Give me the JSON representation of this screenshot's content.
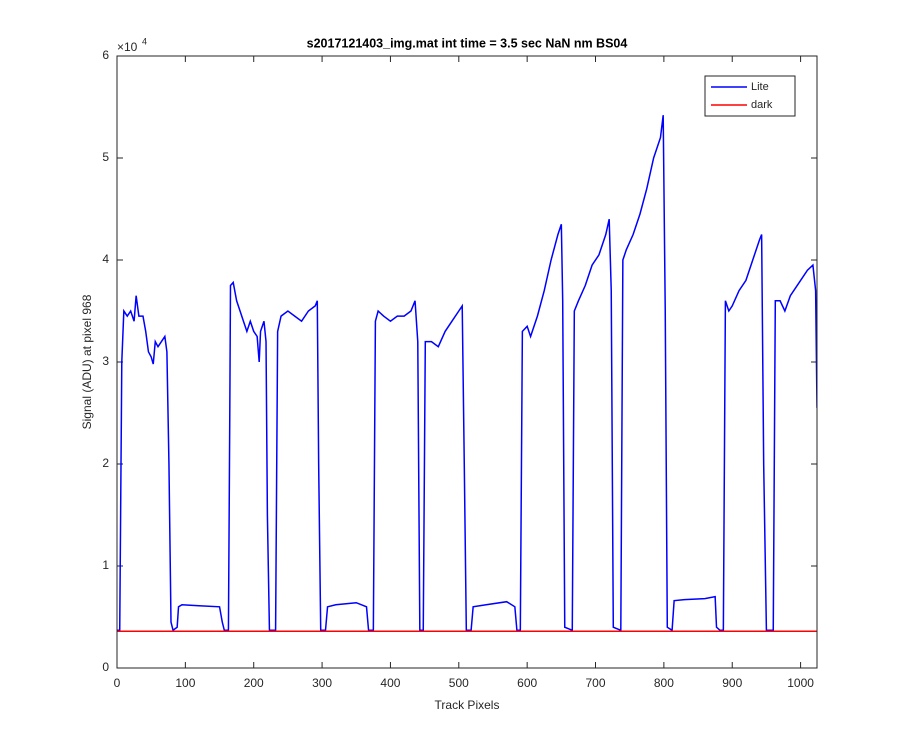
{
  "chart_data": {
    "type": "line",
    "title": "s2017121403_img.mat int time = 3.5 sec  NaN nm BS04",
    "x_label": "Track Pixels",
    "y_label": "Signal (ADU) at pixel 968",
    "y_multiplier": "×10",
    "y_multiplier_exponent": "4",
    "xlim": [
      0,
      1024
    ],
    "xticks": [
      0,
      100,
      200,
      300,
      400,
      500,
      600,
      700,
      800,
      900,
      1000
    ],
    "ylim": [
      0,
      6
    ],
    "yticks": [
      0,
      1,
      2,
      3,
      4,
      5,
      6
    ],
    "legend_position": "top-right",
    "series": [
      {
        "name": "Lite",
        "color": "#0000ff",
        "x": [
          0,
          4,
          7,
          10,
          15,
          20,
          25,
          28,
          32,
          38,
          42,
          46,
          50,
          53,
          56,
          60,
          65,
          70,
          73,
          76,
          79,
          82,
          88,
          90,
          95,
          120,
          150,
          154,
          157,
          163,
          165,
          166,
          170,
          175,
          180,
          185,
          190,
          195,
          200,
          205,
          208,
          210,
          215,
          218,
          220,
          223,
          232,
          235,
          240,
          250,
          260,
          270,
          280,
          290,
          293,
          295,
          298,
          305,
          308,
          320,
          350,
          365,
          368,
          375,
          378,
          382,
          390,
          400,
          410,
          420,
          430,
          436,
          440,
          443,
          448,
          451,
          460,
          470,
          480,
          490,
          500,
          505,
          508,
          511,
          518,
          521,
          540,
          570,
          582,
          585,
          590,
          593,
          600,
          605,
          615,
          625,
          635,
          645,
          650,
          652,
          655,
          666,
          669,
          675,
          685,
          695,
          705,
          715,
          720,
          723,
          726,
          737,
          740,
          745,
          755,
          765,
          775,
          785,
          795,
          799,
          802,
          805,
          812,
          815,
          830,
          860,
          875,
          877,
          882,
          887,
          890,
          895,
          900,
          910,
          920,
          930,
          940,
          943,
          946,
          950,
          960,
          963,
          970,
          977,
          985,
          1000,
          1010,
          1018,
          1022,
          1024
        ],
        "values": [
          0.37,
          0.37,
          3.0,
          3.5,
          3.45,
          3.5,
          3.4,
          3.65,
          3.45,
          3.45,
          3.3,
          3.1,
          3.05,
          2.98,
          3.2,
          3.15,
          3.2,
          3.25,
          3.1,
          2.0,
          0.45,
          0.37,
          0.4,
          0.6,
          0.62,
          0.61,
          0.6,
          0.45,
          0.37,
          0.37,
          2.5,
          3.75,
          3.78,
          3.6,
          3.5,
          3.4,
          3.3,
          3.4,
          3.3,
          3.25,
          3.0,
          3.3,
          3.4,
          3.2,
          1.5,
          0.37,
          0.37,
          3.3,
          3.45,
          3.5,
          3.45,
          3.4,
          3.5,
          3.55,
          3.6,
          2.0,
          0.37,
          0.37,
          0.6,
          0.62,
          0.64,
          0.6,
          0.37,
          0.37,
          3.4,
          3.5,
          3.45,
          3.4,
          3.45,
          3.45,
          3.5,
          3.6,
          3.2,
          0.37,
          0.37,
          3.2,
          3.2,
          3.15,
          3.3,
          3.4,
          3.5,
          3.55,
          2.0,
          0.37,
          0.37,
          0.6,
          0.62,
          0.65,
          0.6,
          0.37,
          0.37,
          3.3,
          3.35,
          3.25,
          3.45,
          3.7,
          4.0,
          4.25,
          4.35,
          3.6,
          0.4,
          0.37,
          3.5,
          3.6,
          3.75,
          3.95,
          4.05,
          4.25,
          4.4,
          3.7,
          0.4,
          0.37,
          4.0,
          4.1,
          4.25,
          4.45,
          4.7,
          5.0,
          5.2,
          5.42,
          3.5,
          0.4,
          0.37,
          0.66,
          0.67,
          0.68,
          0.7,
          0.4,
          0.37,
          0.37,
          3.6,
          3.5,
          3.55,
          3.7,
          3.8,
          4.0,
          4.2,
          4.25,
          2.0,
          0.37,
          0.37,
          3.6,
          3.6,
          3.5,
          3.65,
          3.8,
          3.9,
          3.95,
          3.7,
          2.55
        ]
      },
      {
        "name": "dark",
        "color": "#ff0000",
        "x": [
          0,
          1024
        ],
        "values": [
          0.36,
          0.36
        ]
      }
    ]
  }
}
